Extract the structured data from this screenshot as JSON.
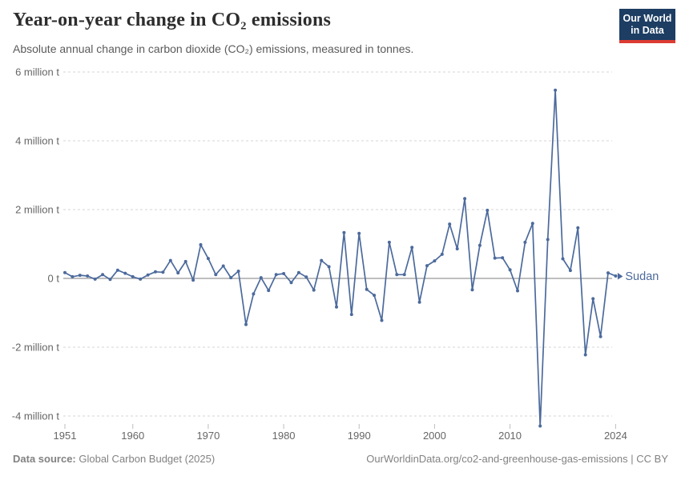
{
  "header": {
    "title": "Year-on-year change in CO₂ emissions",
    "subtitle": "Absolute annual change in carbon dioxide (CO₂) emissions, measured in tonnes.",
    "logo": {
      "line1": "Our World",
      "line2": "in Data"
    }
  },
  "footer": {
    "datasource_label": "Data source:",
    "datasource_value": " Global Carbon Budget (2025)",
    "link": "OurWorldinData.org/co2-and-greenhouse-gas-emissions | CC BY"
  },
  "colors": {
    "line": "#4c6a9c",
    "entity_label": "#4c6a9c",
    "gridline": "#d6d6d6",
    "zero_line": "#a8a8a8",
    "axis_text": "#666666",
    "tick_mark": "#bdbdbd"
  },
  "chart_data": {
    "type": "line",
    "title": "Year-on-year change in CO₂ emissions",
    "xlabel": "",
    "ylabel": "",
    "unit": "million tonnes",
    "grid": "dashed horizontal",
    "legend_position": "end-of-line label",
    "entity_label": "Sudan",
    "ylim": [
      -4.6,
      6.0
    ],
    "xlim": [
      1951,
      2024
    ],
    "y_ticks": [
      {
        "value": 6,
        "label": "6 million t"
      },
      {
        "value": 4,
        "label": "4 million t"
      },
      {
        "value": 2,
        "label": "2 million t"
      },
      {
        "value": 0,
        "label": "0 t"
      },
      {
        "value": -2,
        "label": "-2 million t"
      },
      {
        "value": -4,
        "label": "-4 million t"
      }
    ],
    "x_ticks": [
      {
        "year": 1951,
        "label": "1951"
      },
      {
        "year": 1960,
        "label": "1960"
      },
      {
        "year": 1970,
        "label": "1970"
      },
      {
        "year": 1980,
        "label": "1980"
      },
      {
        "year": 1990,
        "label": "1990"
      },
      {
        "year": 2000,
        "label": "2000"
      },
      {
        "year": 2010,
        "label": "2010"
      },
      {
        "year": 2024,
        "label": "2024"
      }
    ],
    "series": [
      {
        "name": "Sudan",
        "color": "#4c6a9c",
        "x": [
          1951,
          1952,
          1953,
          1954,
          1955,
          1956,
          1957,
          1958,
          1959,
          1960,
          1961,
          1962,
          1963,
          1964,
          1965,
          1966,
          1967,
          1968,
          1969,
          1970,
          1971,
          1972,
          1973,
          1974,
          1975,
          1976,
          1977,
          1978,
          1979,
          1980,
          1981,
          1982,
          1983,
          1984,
          1985,
          1986,
          1987,
          1988,
          1989,
          1990,
          1991,
          1992,
          1993,
          1994,
          1995,
          1996,
          1997,
          1998,
          1999,
          2000,
          2001,
          2002,
          2003,
          2004,
          2005,
          2006,
          2007,
          2008,
          2009,
          2010,
          2011,
          2012,
          2013,
          2014,
          2015,
          2016,
          2017,
          2018,
          2019,
          2020,
          2021,
          2022,
          2023,
          2024
        ],
        "y_million_t": [
          0.17,
          0.05,
          0.09,
          0.07,
          -0.02,
          0.11,
          -0.03,
          0.24,
          0.15,
          0.05,
          -0.02,
          0.1,
          0.19,
          0.18,
          0.52,
          0.16,
          0.49,
          -0.05,
          0.98,
          0.58,
          0.11,
          0.36,
          0.02,
          0.21,
          -1.34,
          -0.45,
          0.02,
          -0.35,
          0.11,
          0.14,
          -0.12,
          0.17,
          0.04,
          -0.34,
          0.52,
          0.34,
          -0.83,
          1.33,
          -1.05,
          1.31,
          -0.32,
          -0.49,
          -1.22,
          1.05,
          0.11,
          0.11,
          0.9,
          -0.69,
          0.37,
          0.51,
          0.7,
          1.58,
          0.86,
          2.32,
          -0.33,
          0.96,
          1.98,
          0.59,
          0.6,
          0.25,
          -0.36,
          1.05,
          1.6,
          -4.29,
          1.13,
          5.47,
          0.57,
          0.23,
          1.47,
          -2.22,
          -0.59,
          -1.69,
          0.16,
          0.07
        ]
      }
    ]
  }
}
